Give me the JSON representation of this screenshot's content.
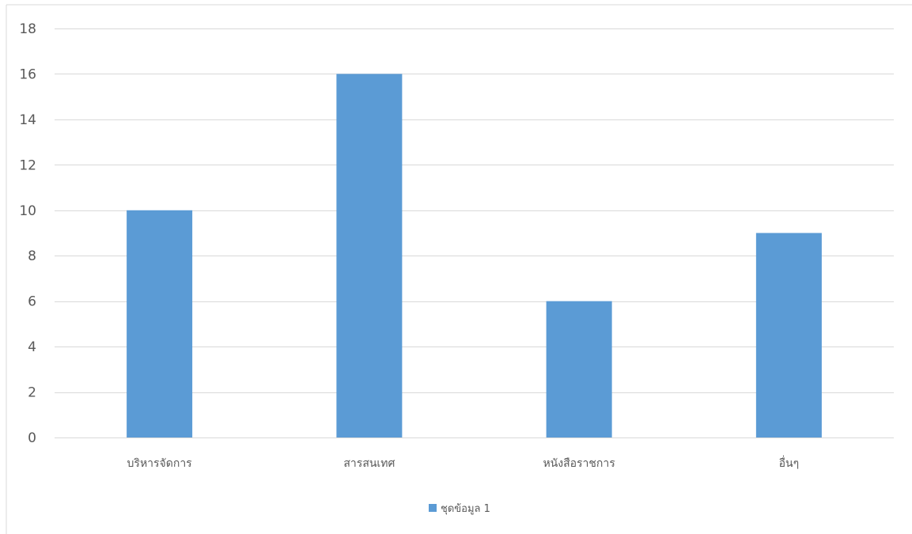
{
  "chart_data": {
    "type": "bar",
    "title": "",
    "xlabel": "",
    "ylabel": "",
    "categories": [
      "บริหารจัดการ",
      "สารสนเทศ",
      "หนังสือราชการ",
      "อื่นๆ"
    ],
    "series": [
      {
        "name": "ชุดข้อมูล 1",
        "values": [
          10,
          16,
          6,
          9
        ],
        "color": "#5b9bd5"
      }
    ],
    "ylim": [
      0,
      18
    ],
    "yticks": [
      0,
      2,
      4,
      6,
      8,
      10,
      12,
      14,
      16,
      18
    ],
    "grid": true,
    "legend": "bottom",
    "colors": {
      "gridline": "#d9d9d9",
      "axis": "#d9d9d9",
      "text": "#595959",
      "frame": "#d9d9d9"
    }
  }
}
